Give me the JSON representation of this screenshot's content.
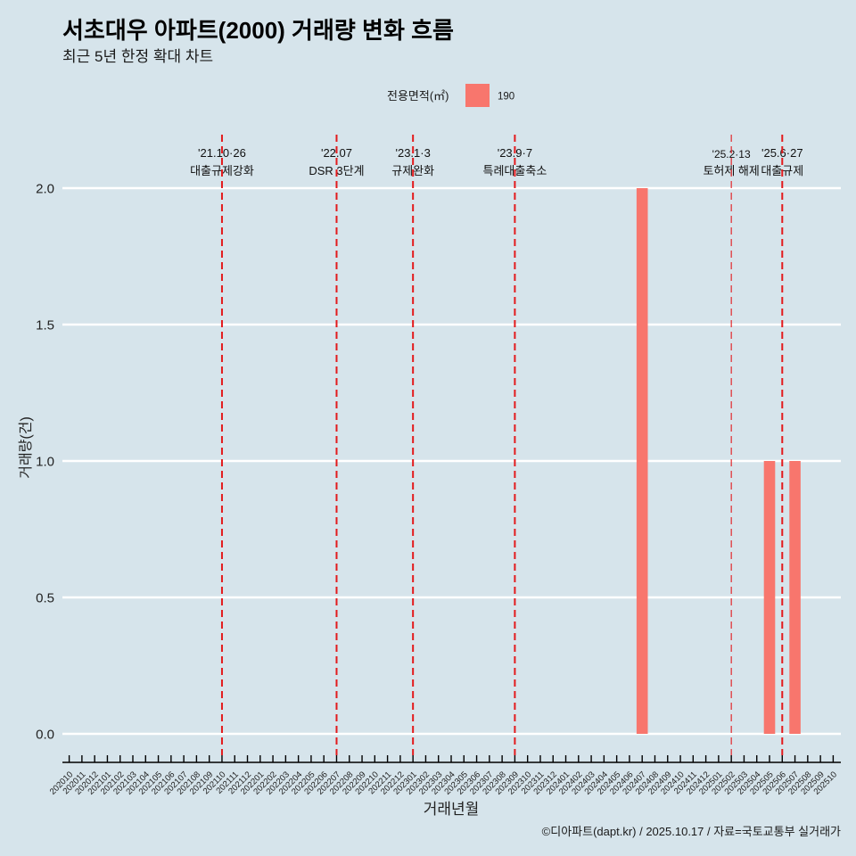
{
  "header": {
    "title": "서초대우 아파트(2000) 거래량 변화 흐름",
    "subtitle": "최근 5년 한정 확대 차트"
  },
  "legend": {
    "title": "전용면적(㎡)",
    "items": [
      {
        "label": "190",
        "color": "#F8766D"
      }
    ]
  },
  "caption": "©디아파트(dapt.kr) / 2025.10.17 / 자료=국토교통부 실거래가",
  "colors": {
    "background": "#d6e4eb",
    "gridline": "#ffffff",
    "policy_line": "#e31a1c",
    "axis": "#000000"
  },
  "chart_data": {
    "type": "bar",
    "title": "서초대우 아파트(2000) 거래량 변화 흐름",
    "subtitle": "최근 5년 한정 확대 차트",
    "xlabel": "거래년월",
    "ylabel": "거래량(건)",
    "ylim": [
      0,
      2.0
    ],
    "yticks": [
      0.0,
      0.5,
      1.0,
      1.5,
      2.0
    ],
    "ytick_labels": [
      "0.0",
      "0.5",
      "1.0",
      "1.5",
      "2.0"
    ],
    "grid": "horizontal major only",
    "legend_position": "top",
    "categories": [
      "202010",
      "202011",
      "202012",
      "202101",
      "202102",
      "202103",
      "202104",
      "202105",
      "202106",
      "202107",
      "202108",
      "202109",
      "202110",
      "202111",
      "202112",
      "202201",
      "202202",
      "202203",
      "202204",
      "202205",
      "202206",
      "202207",
      "202208",
      "202209",
      "202210",
      "202211",
      "202212",
      "202301",
      "202302",
      "202303",
      "202304",
      "202305",
      "202306",
      "202307",
      "202308",
      "202309",
      "202310",
      "202311",
      "202312",
      "202401",
      "202402",
      "202403",
      "202404",
      "202405",
      "202406",
      "202407",
      "202408",
      "202409",
      "202410",
      "202411",
      "202412",
      "202501",
      "202502",
      "202503",
      "202504",
      "202505",
      "202506",
      "202507",
      "202508",
      "202509",
      "202510"
    ],
    "series": [
      {
        "name": "190",
        "color": "#F8766D",
        "values": [
          0,
          0,
          0,
          0,
          0,
          0,
          0,
          0,
          0,
          0,
          0,
          0,
          0,
          0,
          0,
          0,
          0,
          0,
          0,
          0,
          0,
          0,
          0,
          0,
          0,
          0,
          0,
          0,
          0,
          0,
          0,
          0,
          0,
          0,
          0,
          0,
          0,
          0,
          0,
          0,
          0,
          0,
          0,
          0,
          0,
          2,
          0,
          0,
          0,
          0,
          0,
          0,
          0,
          0,
          0,
          1,
          0,
          1,
          0,
          0,
          0
        ]
      }
    ],
    "annotations": [
      {
        "month": "202110",
        "date": "'21.10·26",
        "label": "대출규제강화",
        "style": "major"
      },
      {
        "month": "202207",
        "date": "'22.07",
        "label": "DSR 3단계",
        "style": "major"
      },
      {
        "month": "202301",
        "date": "'23.1·3",
        "label": "규제완화",
        "style": "major"
      },
      {
        "month": "202309",
        "date": "'23.9·7",
        "label": "특례대출축소",
        "style": "major"
      },
      {
        "month": "202502",
        "date": "'25.2·13",
        "label": "토허제 해제",
        "style": "minor"
      },
      {
        "month": "202506",
        "date": "'25.6·27",
        "label": "대출규제",
        "style": "major"
      }
    ]
  }
}
